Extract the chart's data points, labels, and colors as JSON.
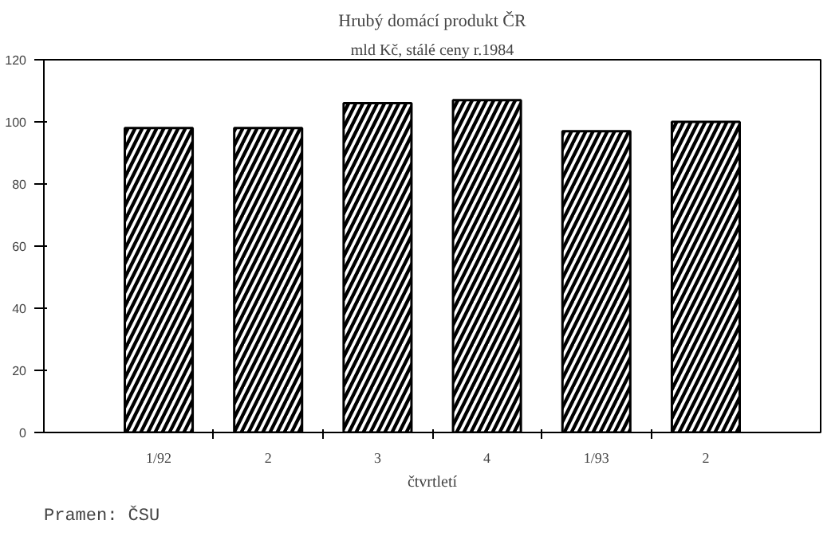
{
  "chart_data": {
    "type": "bar",
    "title": "Hrubý domácí produkt ČR",
    "subtitle": "mld Kč, stálé ceny r.1984",
    "xlabel": "čtvrtletí",
    "annotations": [
      "Pramen: ČSU"
    ],
    "categories": [
      "1/92",
      "2",
      "3",
      "4",
      "1/93",
      "2"
    ],
    "values": [
      98,
      98,
      106,
      107,
      97,
      100
    ],
    "color": "#000000",
    "ylim": [
      0,
      120
    ],
    "yticks": [
      0,
      20,
      40,
      60,
      80,
      100,
      120
    ],
    "grid": false
  }
}
